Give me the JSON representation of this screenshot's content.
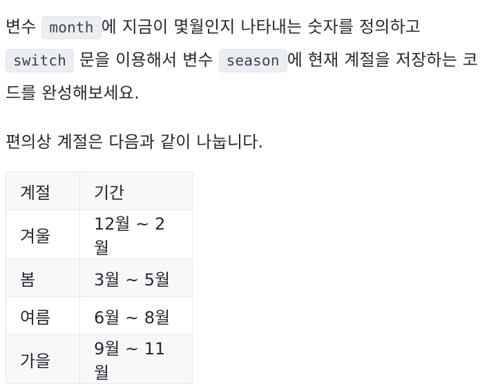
{
  "paragraph1": {
    "t1": "변수 ",
    "code1": "month",
    "t2": "에 지금이 몇월인지 나타내는 숫자를 정의하고",
    "code2": "switch",
    "t3": " 문을 이용해서  변수 ",
    "code3": "season",
    "t4": "에 현재 계절을 저장하는 코드를 완성해보세요."
  },
  "paragraph2": "편의상 계절은 다음과 같이 나눕니다.",
  "table": {
    "headers": [
      "계절",
      "기간"
    ],
    "rows": [
      [
        "겨울",
        "12월 ~ 2월"
      ],
      [
        "봄",
        "3월 ~ 5월"
      ],
      [
        "여름",
        "6월 ~ 8월"
      ],
      [
        "가을",
        "9월 ~ 11월"
      ]
    ]
  }
}
